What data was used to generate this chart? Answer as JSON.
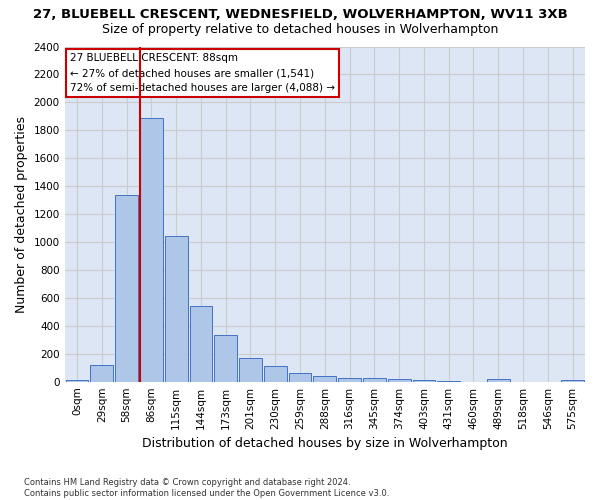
{
  "title": "27, BLUEBELL CRESCENT, WEDNESFIELD, WOLVERHAMPTON, WV11 3XB",
  "subtitle": "Size of property relative to detached houses in Wolverhampton",
  "xlabel": "Distribution of detached houses by size in Wolverhampton",
  "ylabel": "Number of detached properties",
  "footer_line1": "Contains HM Land Registry data © Crown copyright and database right 2024.",
  "footer_line2": "Contains public sector information licensed under the Open Government Licence v3.0.",
  "bar_labels": [
    "0sqm",
    "29sqm",
    "58sqm",
    "86sqm",
    "115sqm",
    "144sqm",
    "173sqm",
    "201sqm",
    "230sqm",
    "259sqm",
    "288sqm",
    "316sqm",
    "345sqm",
    "374sqm",
    "403sqm",
    "431sqm",
    "460sqm",
    "489sqm",
    "518sqm",
    "546sqm",
    "575sqm"
  ],
  "bar_values": [
    15,
    120,
    1340,
    1890,
    1040,
    540,
    335,
    170,
    110,
    65,
    42,
    28,
    25,
    22,
    15,
    5,
    0,
    18,
    0,
    0,
    15
  ],
  "bar_color": "#aec6e8",
  "bar_edge_color": "#4472c4",
  "vline_index": 3,
  "vline_color": "#cc0000",
  "annotation_line1": "27 BLUEBELL CRESCENT: 88sqm",
  "annotation_line2": "← 27% of detached houses are smaller (1,541)",
  "annotation_line3": "72% of semi-detached houses are larger (4,088) →",
  "annotation_box_color": "#cc0000",
  "ylim": [
    0,
    2400
  ],
  "yticks": [
    0,
    200,
    400,
    600,
    800,
    1000,
    1200,
    1400,
    1600,
    1800,
    2000,
    2200,
    2400
  ],
  "grid_color": "#cccccc",
  "bg_color": "#dce6f5",
  "title_fontsize": 9.5,
  "subtitle_fontsize": 9,
  "xlabel_fontsize": 9,
  "ylabel_fontsize": 9,
  "tick_fontsize": 7.5,
  "annotation_fontsize": 7.5,
  "footer_fontsize": 6
}
